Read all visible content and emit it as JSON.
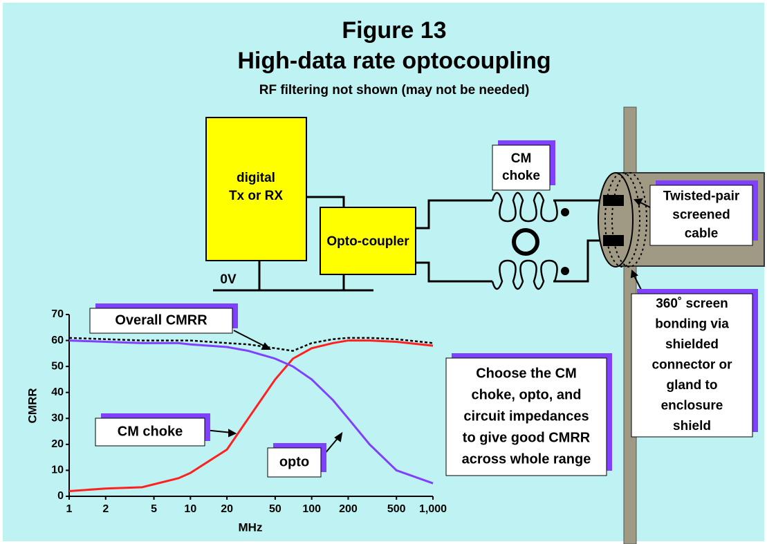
{
  "header": {
    "title": "Figure 13",
    "subtitle": "High-data rate optocoupling",
    "note": "RF filtering not shown (may not be needed)"
  },
  "blocks": {
    "digital": [
      "digital",
      "Tx or RX"
    ],
    "opto": "Opto-coupler",
    "ground": "0V"
  },
  "callouts": {
    "choke": [
      "CM",
      "choke"
    ],
    "cable": [
      "Twisted-pair",
      "screened",
      "cable"
    ],
    "bonding": [
      "360˚ screen",
      "bonding via",
      "shielded",
      "connector or",
      "gland to",
      "enclosure",
      "shield"
    ],
    "advice": [
      "Choose the CM",
      "choke, opto, and",
      "circuit impedances",
      "to give good CMRR",
      "across whole range"
    ]
  },
  "chart_data": {
    "type": "line",
    "xlabel": "MHz",
    "ylabel": "CMRR",
    "xscale": "log",
    "x": [
      1,
      2,
      4,
      8,
      10,
      20,
      30,
      50,
      70,
      100,
      150,
      200,
      300,
      500,
      1000
    ],
    "series": [
      {
        "name": "Overall CMRR",
        "color": "#000000",
        "dashed": true,
        "values": [
          61,
          60.5,
          60,
          60,
          60,
          59,
          58.5,
          57,
          56,
          59,
          60.5,
          61,
          61,
          60.5,
          59
        ]
      },
      {
        "name": "CM choke",
        "color": "#ff2020",
        "values": [
          2,
          3,
          3.5,
          7,
          9,
          18,
          30,
          45,
          53,
          57,
          59,
          60,
          60,
          59.5,
          58
        ]
      },
      {
        "name": "opto",
        "color": "#8040ff",
        "values": [
          60,
          59.5,
          59,
          59,
          58.5,
          57.5,
          56,
          53,
          50,
          45,
          37,
          30,
          20,
          10,
          5
        ]
      }
    ],
    "xlim": [
      1,
      1000
    ],
    "ylim": [
      0,
      70
    ],
    "xticks": [
      1,
      2,
      5,
      10,
      20,
      50,
      100,
      200,
      500,
      {
        "value": 1000,
        "label": "1,000"
      }
    ],
    "yticks": [
      0,
      10,
      20,
      30,
      40,
      50,
      60,
      70
    ]
  }
}
